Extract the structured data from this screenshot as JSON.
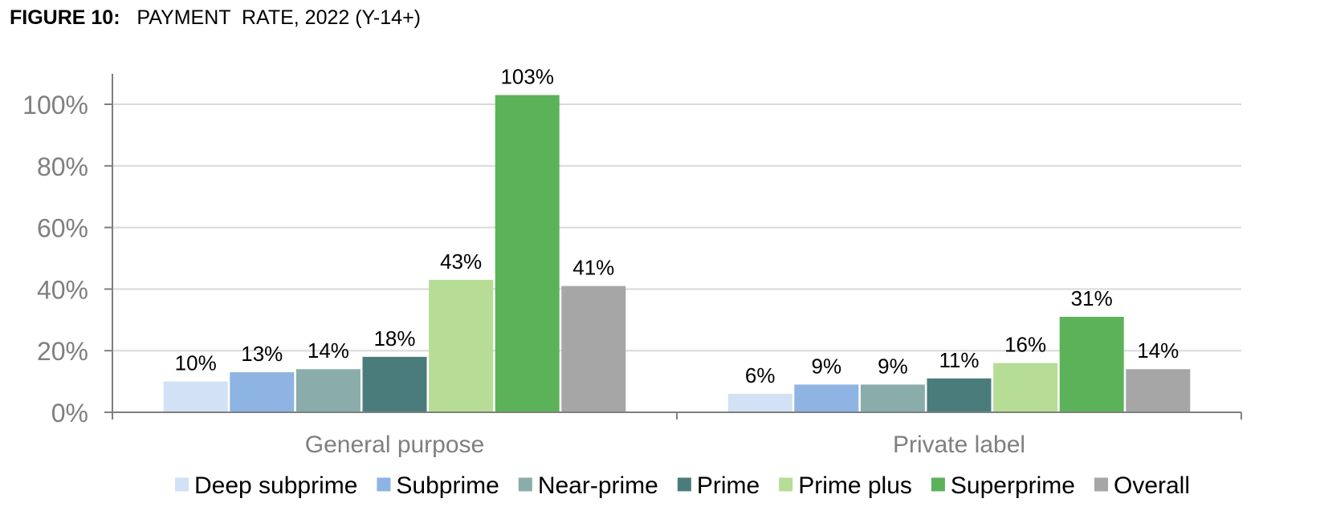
{
  "figure": {
    "label": "FIGURE 10:",
    "title": "PAYMENT  RATE, 2022 (Y-14+)"
  },
  "colors": {
    "axis": "#7f7f7f",
    "grid": "#d9d9d9",
    "tick_text": "#7f7f7f",
    "category_text": "#7f7f7f",
    "data_label": "#000000",
    "legend_text": "#000000"
  },
  "chart_data": {
    "type": "bar",
    "categories": [
      "General purpose",
      "Private label"
    ],
    "series": [
      {
        "name": "Deep subprime",
        "color": "#d2e1f3",
        "values": [
          10,
          6
        ],
        "labels": [
          "10%",
          "6%"
        ]
      },
      {
        "name": "Subprime",
        "color": "#8db4e2",
        "values": [
          13,
          9
        ],
        "labels": [
          "13%",
          "9%"
        ]
      },
      {
        "name": "Near-prime",
        "color": "#8aacab",
        "values": [
          14,
          9
        ],
        "labels": [
          "14%",
          "9%"
        ]
      },
      {
        "name": "Prime",
        "color": "#4a7c7c",
        "values": [
          18,
          11
        ],
        "labels": [
          "18%",
          "11%"
        ]
      },
      {
        "name": "Prime plus",
        "color": "#b7dc96",
        "values": [
          43,
          16
        ],
        "labels": [
          "43%",
          "16%"
        ]
      },
      {
        "name": "Superprime",
        "color": "#5cb259",
        "values": [
          103,
          31
        ],
        "labels": [
          "103%",
          "31%"
        ]
      },
      {
        "name": "Overall",
        "color": "#a6a6a6",
        "values": [
          41,
          14
        ],
        "labels": [
          "41%",
          "14%"
        ]
      }
    ],
    "y_ticks": [
      "0%",
      "20%",
      "40%",
      "60%",
      "80%",
      "100%"
    ],
    "ylim": [
      0,
      110
    ],
    "grid": true,
    "legend": "bottom"
  }
}
